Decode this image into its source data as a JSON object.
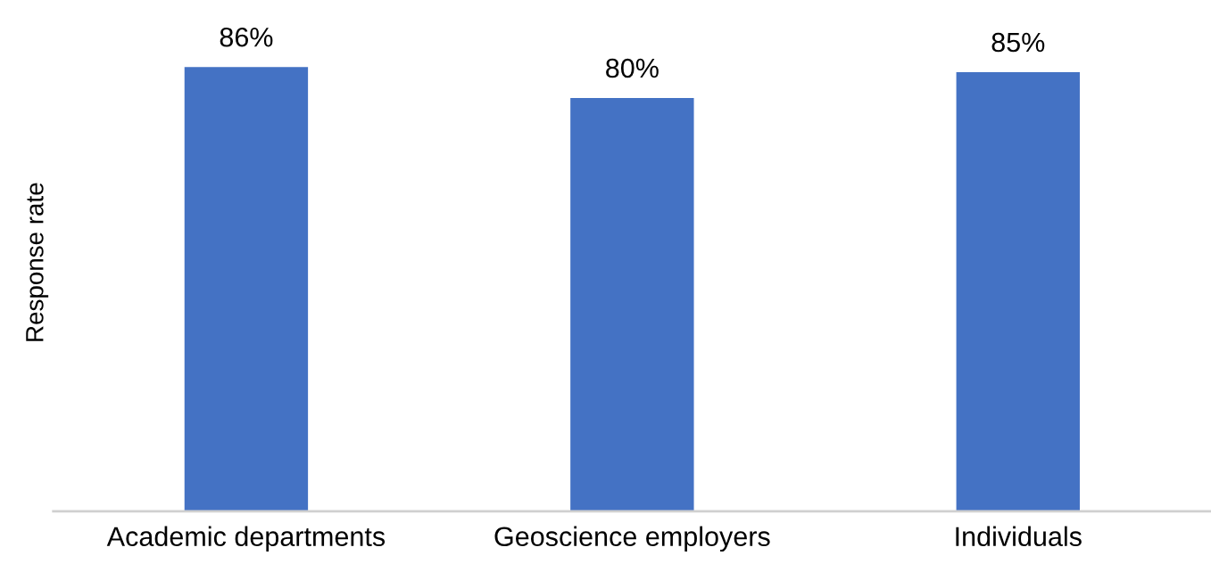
{
  "chart_data": {
    "type": "bar",
    "ylabel": "Response rate",
    "categories": [
      "Academic departments",
      "Geoscience employers",
      "Individuals"
    ],
    "values": [
      86,
      80,
      85
    ],
    "value_labels": [
      "86%",
      "80%",
      "85%"
    ],
    "color": "#4472c4",
    "grid": false,
    "legend": false
  }
}
